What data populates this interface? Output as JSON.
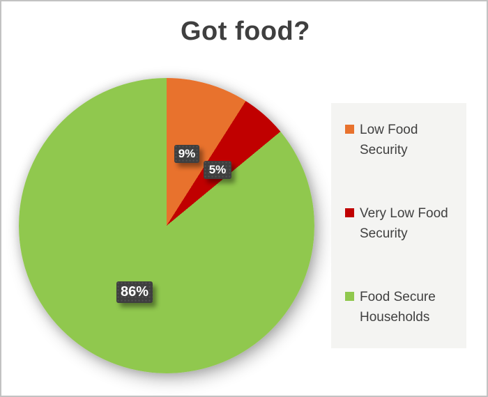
{
  "frame": {
    "background": "#ffffff",
    "border_color": "#c2c2c2"
  },
  "chart_data": {
    "type": "pie",
    "title": "Got food?",
    "title_color": "#3f3f3f",
    "start_angle_deg": 0,
    "direction": "clockwise",
    "legend_position": "right",
    "legend_background": "#f4f4f2",
    "slices": [
      {
        "label": "Low Food Security",
        "value": 9,
        "data_label": "9%",
        "color": "#e8722d"
      },
      {
        "label": "Very Low Food Security",
        "value": 5,
        "data_label": "5%",
        "color": "#c00000"
      },
      {
        "label": "Food Secure Households",
        "value": 86,
        "data_label": "86%",
        "color": "#90c84e"
      }
    ],
    "data_label_style": {
      "background": "#3f3f3f",
      "text_color": "#ffffff"
    }
  }
}
